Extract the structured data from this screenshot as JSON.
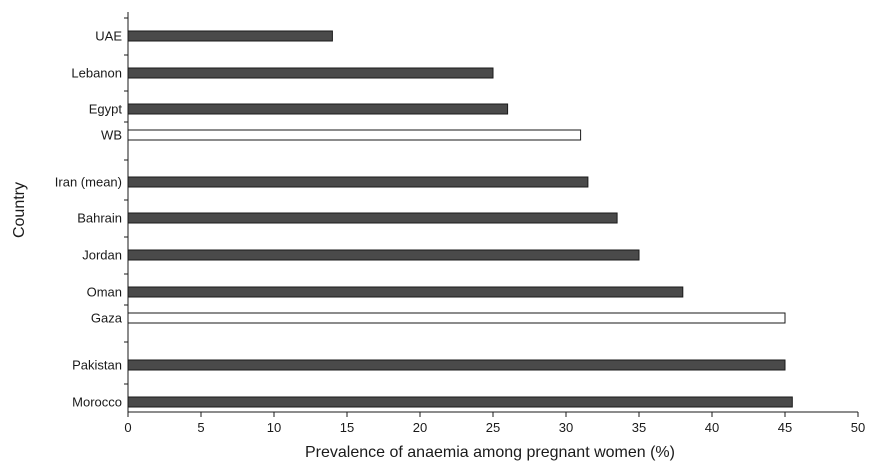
{
  "chart_data": {
    "type": "bar",
    "orientation": "horizontal",
    "title": "",
    "xlabel": "Prevalence of anaemia among pregnant women (%)",
    "ylabel": "Country",
    "xlim": [
      0,
      50
    ],
    "xticks": [
      0,
      5,
      10,
      15,
      20,
      25,
      30,
      35,
      40,
      45,
      50
    ],
    "grid": false,
    "legend": "none",
    "categories": [
      "UAE",
      "Lebanon",
      "Egypt",
      "WB",
      "Iran (mean)",
      "Bahrain",
      "Jordan",
      "Oman",
      "Gaza",
      "Pakistan",
      "Morocco"
    ],
    "values": [
      14,
      25,
      26,
      31,
      31.5,
      33.5,
      35,
      38,
      45,
      45,
      45.5
    ],
    "bar_style": [
      "filled",
      "filled",
      "filled",
      "hollow",
      "filled",
      "filled",
      "filled",
      "filled",
      "hollow",
      "filled",
      "filled"
    ],
    "colors": {
      "filled": "#4a4a4a",
      "hollow": "#ffffff",
      "outline": "#1a1a1a",
      "axis": "#1a1a1a"
    }
  }
}
